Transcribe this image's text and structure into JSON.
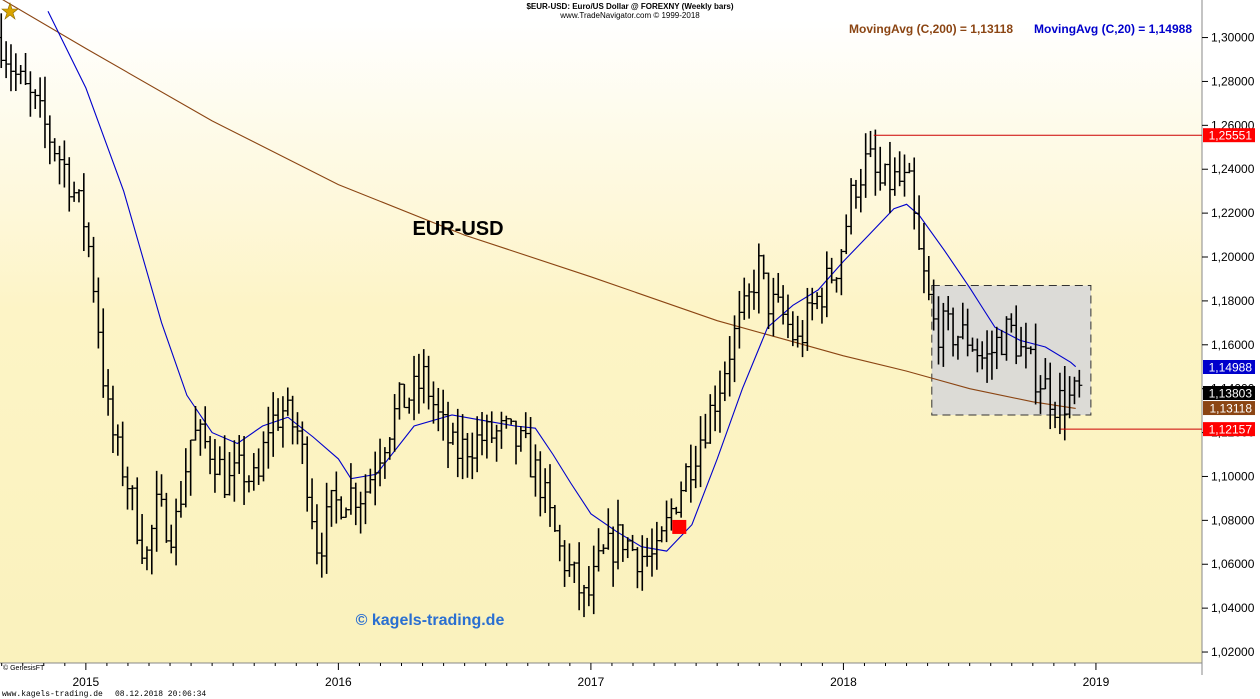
{
  "header": {
    "line1": "$EUR-USD:  Euro/US Dollar @ FOREXNY  (Weekly bars)",
    "line2": "www.TradeNavigator.com © 1999-2018"
  },
  "legend": {
    "ma200_label": "MovingAvg (C,200) = 1,13118",
    "ma20_label": "MovingAvg (C,20) = 1,14988",
    "ma200_color": "#8b4513",
    "ma20_color": "#0000cc"
  },
  "title_text": "EUR-USD",
  "watermark": "© kagels-trading.de",
  "genesis": "© GenesisFT",
  "footer": {
    "site": "www.kagels-trading.de",
    "datetime": "08.12.2018 20:06:34"
  },
  "chart_data": {
    "type": "ohlc-bar",
    "ylim": [
      1.015,
      1.308
    ],
    "y_ticks": [
      "1,30000",
      "1,28000",
      "1,26000",
      "1,24000",
      "1,22000",
      "1,20000",
      "1,18000",
      "1,16000",
      "1,14000",
      "1,12000",
      "1,10000",
      "1,08000",
      "1,06000",
      "1,04000",
      "1,02000"
    ],
    "y_tick_values": [
      1.3,
      1.28,
      1.26,
      1.24,
      1.22,
      1.2,
      1.18,
      1.16,
      1.14,
      1.12,
      1.1,
      1.08,
      1.06,
      1.04,
      1.02
    ],
    "x_ticks": [
      "2015",
      "2016",
      "2017",
      "2018",
      "2019"
    ],
    "x_tick_values": [
      2015.0,
      2016.0,
      2017.0,
      2018.0,
      2019.0
    ],
    "xlim": [
      2014.66,
      2019.42
    ],
    "price_labels": [
      {
        "text": "1,25551",
        "value": 1.25551,
        "bg": "#ff0000",
        "fg": "#ffffff"
      },
      {
        "text": "1,14988",
        "value": 1.14988,
        "bg": "#0000cc",
        "fg": "#ffffff"
      },
      {
        "text": "1,13803",
        "value": 1.13803,
        "bg": "#000000",
        "fg": "#ffffff"
      },
      {
        "text": "1,13118",
        "value": 1.13118,
        "bg": "#8b4513",
        "fg": "#ffffff"
      },
      {
        "text": "1,12157",
        "value": 1.12157,
        "bg": "#ff0000",
        "fg": "#ffffff"
      }
    ],
    "high_line": {
      "value": 1.25551,
      "from_x": 2018.12
    },
    "low_line": {
      "value": 1.12157,
      "from_x": 2018.86
    },
    "range_box": {
      "x0": 2018.35,
      "x1": 2018.98,
      "y0": 1.128,
      "y1": 1.187
    },
    "signal_marker": {
      "x": 2017.35,
      "y": 1.077,
      "color": "#ff0000"
    },
    "ma200": [
      [
        2014.66,
        1.318
      ],
      [
        2015.0,
        1.295
      ],
      [
        2015.5,
        1.262
      ],
      [
        2016.0,
        1.233
      ],
      [
        2016.5,
        1.21
      ],
      [
        2017.0,
        1.191
      ],
      [
        2017.5,
        1.171
      ],
      [
        2017.75,
        1.163
      ],
      [
        2018.0,
        1.155
      ],
      [
        2018.25,
        1.148
      ],
      [
        2018.5,
        1.14
      ],
      [
        2018.75,
        1.134
      ],
      [
        2018.92,
        1.131
      ]
    ],
    "ma20": [
      [
        2014.85,
        1.312
      ],
      [
        2015.0,
        1.277
      ],
      [
        2015.15,
        1.23
      ],
      [
        2015.3,
        1.17
      ],
      [
        2015.4,
        1.137
      ],
      [
        2015.5,
        1.12
      ],
      [
        2015.6,
        1.115
      ],
      [
        2015.7,
        1.123
      ],
      [
        2015.8,
        1.127
      ],
      [
        2015.9,
        1.118
      ],
      [
        2016.0,
        1.108
      ],
      [
        2016.05,
        1.099
      ],
      [
        2016.15,
        1.101
      ],
      [
        2016.3,
        1.123
      ],
      [
        2016.45,
        1.128
      ],
      [
        2016.55,
        1.126
      ],
      [
        2016.7,
        1.123
      ],
      [
        2016.78,
        1.122
      ],
      [
        2016.85,
        1.11
      ],
      [
        2016.92,
        1.097
      ],
      [
        2017.0,
        1.083
      ],
      [
        2017.1,
        1.075
      ],
      [
        2017.2,
        1.068
      ],
      [
        2017.3,
        1.066
      ],
      [
        2017.4,
        1.078
      ],
      [
        2017.5,
        1.108
      ],
      [
        2017.6,
        1.14
      ],
      [
        2017.7,
        1.168
      ],
      [
        2017.8,
        1.178
      ],
      [
        2017.9,
        1.185
      ],
      [
        2018.0,
        1.198
      ],
      [
        2018.1,
        1.21
      ],
      [
        2018.2,
        1.222
      ],
      [
        2018.25,
        1.224
      ],
      [
        2018.3,
        1.219
      ],
      [
        2018.4,
        1.203
      ],
      [
        2018.5,
        1.186
      ],
      [
        2018.55,
        1.177
      ],
      [
        2018.6,
        1.168
      ],
      [
        2018.7,
        1.162
      ],
      [
        2018.8,
        1.159
      ],
      [
        2018.9,
        1.152
      ],
      [
        2018.92,
        1.15
      ]
    ],
    "path": [
      [
        2014.66,
        1.3
      ],
      [
        2014.72,
        1.283
      ],
      [
        2014.8,
        1.268
      ],
      [
        2014.86,
        1.254
      ],
      [
        2014.92,
        1.24
      ],
      [
        2015.0,
        1.214
      ],
      [
        2015.04,
        1.18
      ],
      [
        2015.08,
        1.133
      ],
      [
        2015.12,
        1.112
      ],
      [
        2015.16,
        1.1
      ],
      [
        2015.2,
        1.08
      ],
      [
        2015.24,
        1.063
      ],
      [
        2015.28,
        1.085
      ],
      [
        2015.35,
        1.075
      ],
      [
        2015.42,
        1.12
      ],
      [
        2015.5,
        1.112
      ],
      [
        2015.56,
        1.096
      ],
      [
        2015.62,
        1.103
      ],
      [
        2015.68,
        1.095
      ],
      [
        2015.72,
        1.123
      ],
      [
        2015.78,
        1.13
      ],
      [
        2015.84,
        1.12
      ],
      [
        2015.88,
        1.097
      ],
      [
        2015.92,
        1.066
      ],
      [
        2015.97,
        1.085
      ],
      [
        2016.04,
        1.093
      ],
      [
        2016.1,
        1.092
      ],
      [
        2016.16,
        1.111
      ],
      [
        2016.24,
        1.133
      ],
      [
        2016.3,
        1.138
      ],
      [
        2016.34,
        1.145
      ],
      [
        2016.4,
        1.125
      ],
      [
        2016.46,
        1.11
      ],
      [
        2016.52,
        1.115
      ],
      [
        2016.58,
        1.118
      ],
      [
        2016.66,
        1.12
      ],
      [
        2016.74,
        1.112
      ],
      [
        2016.8,
        1.097
      ],
      [
        2016.84,
        1.08
      ],
      [
        2016.88,
        1.065
      ],
      [
        2016.94,
        1.052
      ],
      [
        2016.98,
        1.042
      ],
      [
        2017.04,
        1.062
      ],
      [
        2017.12,
        1.073
      ],
      [
        2017.18,
        1.065
      ],
      [
        2017.26,
        1.062
      ],
      [
        2017.32,
        1.085
      ],
      [
        2017.38,
        1.103
      ],
      [
        2017.44,
        1.12
      ],
      [
        2017.5,
        1.138
      ],
      [
        2017.56,
        1.162
      ],
      [
        2017.62,
        1.177
      ],
      [
        2017.66,
        1.197
      ],
      [
        2017.7,
        1.18
      ],
      [
        2017.76,
        1.173
      ],
      [
        2017.82,
        1.16
      ],
      [
        2017.88,
        1.178
      ],
      [
        2017.92,
        1.185
      ],
      [
        2017.98,
        1.198
      ],
      [
        2018.04,
        1.232
      ],
      [
        2018.1,
        1.245
      ],
      [
        2018.14,
        1.232
      ],
      [
        2018.2,
        1.235
      ],
      [
        2018.26,
        1.232
      ],
      [
        2018.3,
        1.2
      ],
      [
        2018.36,
        1.168
      ],
      [
        2018.42,
        1.166
      ],
      [
        2018.5,
        1.163
      ],
      [
        2018.56,
        1.152
      ],
      [
        2018.62,
        1.163
      ],
      [
        2018.66,
        1.167
      ],
      [
        2018.72,
        1.153
      ],
      [
        2018.78,
        1.144
      ],
      [
        2018.84,
        1.134
      ],
      [
        2018.9,
        1.135
      ],
      [
        2018.93,
        1.138
      ]
    ]
  }
}
